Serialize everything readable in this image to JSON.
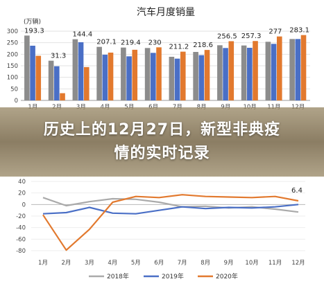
{
  "overlay": {
    "headline": "历史上的12月27日，新型非典疫情的实时记录"
  },
  "chart_data": [
    {
      "type": "bar",
      "title": "汽车月度销量",
      "ylabel": "(万辆)",
      "categories": [
        "1月",
        "2月",
        "3月",
        "4月",
        "5月",
        "6月",
        "7月",
        "8月",
        "9月",
        "10月",
        "11月",
        "12月"
      ],
      "ylim": [
        0,
        300
      ],
      "yticks": [
        0,
        50,
        100,
        150,
        200,
        250,
        300
      ],
      "series": [
        {
          "name": "2018年",
          "color": "#8c8c8c",
          "values": [
            281,
            172,
            265,
            232,
            229,
            227,
            189,
            210,
            239,
            238,
            254,
            266
          ]
        },
        {
          "name": "2019年",
          "color": "#4a6fc6",
          "values": [
            237,
            148,
            252,
            198,
            191,
            206,
            181,
            196,
            227,
            228,
            245,
            266
          ]
        },
        {
          "name": "2020年",
          "color": "#e2792e",
          "values": [
            193.3,
            31.3,
            144.4,
            207.1,
            219.4,
            230,
            211.2,
            218.6,
            256.5,
            257.3,
            277,
            283.1
          ]
        }
      ],
      "data_labels": [
        "193.3",
        "31.3",
        "144.4",
        "207.1",
        "219.4",
        "230",
        "211.2",
        "218.6",
        "256.5",
        "257.3",
        "277",
        "283.1"
      ]
    },
    {
      "type": "line",
      "categories": [
        "1月",
        "2月",
        "3月",
        "4月",
        "5月",
        "6月",
        "7月",
        "8月",
        "9月",
        "10月",
        "11月",
        "12月"
      ],
      "ylim": [
        -80,
        40
      ],
      "yticks": [
        40,
        20,
        0,
        -20,
        -40,
        -60,
        -80
      ],
      "series": [
        {
          "name": "2018年",
          "color": "#aaaaaa",
          "values": [
            12,
            -2,
            5,
            10,
            9,
            4,
            -4,
            -3,
            -6,
            -4,
            -8,
            -13
          ]
        },
        {
          "name": "2019年",
          "color": "#4a6fc6",
          "values": [
            -16,
            -14,
            -5,
            -15,
            -16,
            -10,
            -4,
            -7,
            -5,
            -6,
            -4,
            0
          ]
        },
        {
          "name": "2020年",
          "color": "#e2792e",
          "values": [
            -18,
            -79,
            -43,
            4,
            14,
            12,
            17,
            14,
            13,
            12,
            14,
            6.4
          ]
        }
      ],
      "data_labels": [
        {
          "series": "2020年",
          "index": 11,
          "text": "6.4"
        }
      ],
      "legend": "bottom"
    }
  ]
}
